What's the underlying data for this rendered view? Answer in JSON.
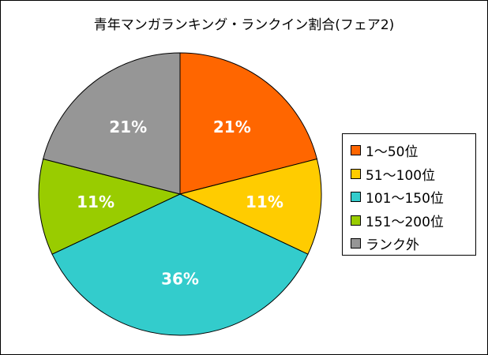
{
  "chart_data": {
    "type": "pie",
    "title": "青年マンガランキング・ランクイン割合(フェア2)",
    "categories": [
      "1〜50位",
      "51〜100位",
      "101〜150位",
      "151〜200位",
      "ランク外"
    ],
    "values": [
      21,
      11,
      36,
      11,
      21
    ],
    "labels": [
      "21%",
      "11%",
      "36%",
      "11%",
      "21%"
    ],
    "colors": [
      "#ff6600",
      "#ffcc00",
      "#33cccc",
      "#99cc00",
      "#969696"
    ],
    "legend": "right",
    "start": "top",
    "direction": "clockwise"
  }
}
